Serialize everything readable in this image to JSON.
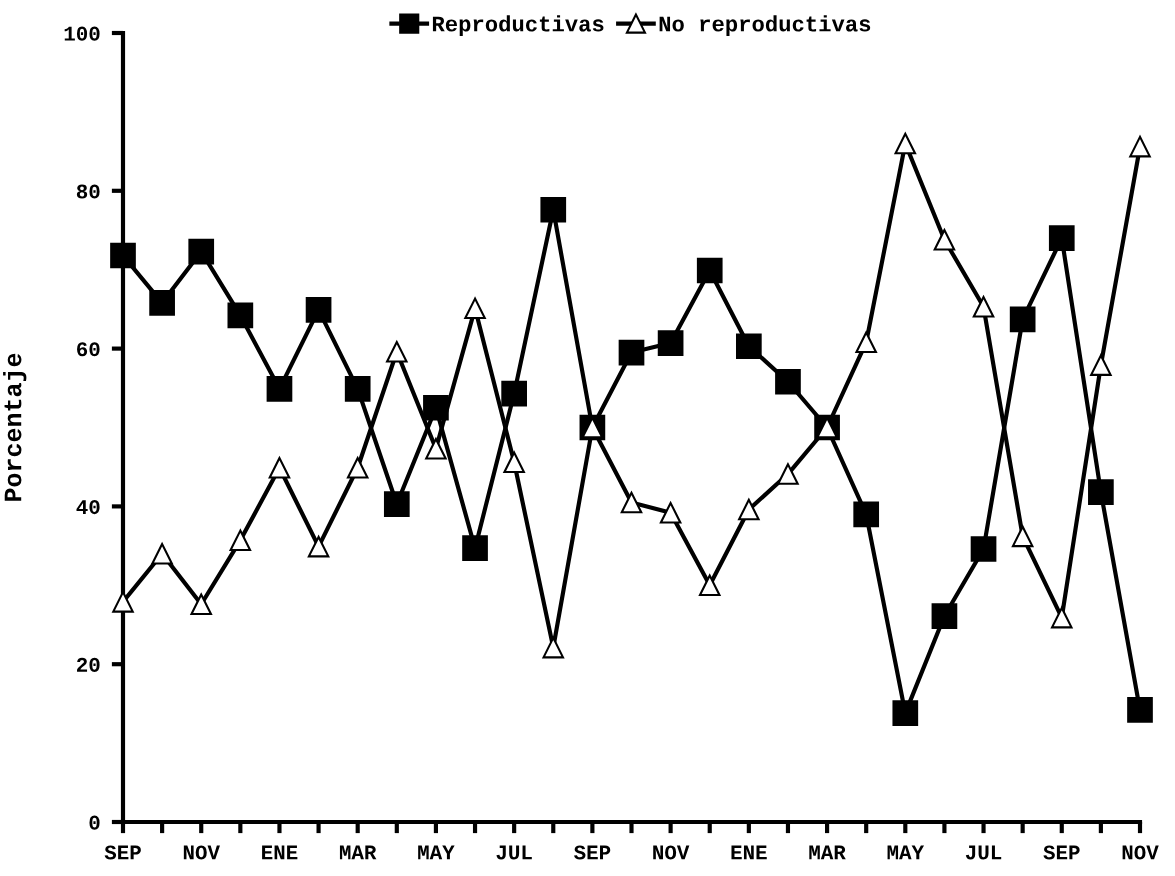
{
  "chart_data": {
    "type": "line",
    "ylabel": "Porcentaje",
    "categories": [
      "SEP",
      null,
      "NOV",
      null,
      "ENE",
      null,
      "MAR",
      null,
      "MAY",
      null,
      "JUL",
      null,
      "SEP",
      null,
      "NOV",
      null,
      "ENE",
      null,
      "MAR",
      null,
      "MAY",
      null,
      "JUL",
      null,
      "SEP",
      null,
      "NOV"
    ],
    "series": [
      {
        "name": "Reproductivas",
        "color": "#000000",
        "marker": "square",
        "values": [
          71.8,
          65.8,
          72.3,
          64.2,
          54.9,
          64.9,
          54.9,
          40.3,
          52.5,
          34.7,
          54.3,
          77.6,
          50,
          59.5,
          60.7,
          69.9,
          60.3,
          55.8,
          50,
          39.0,
          13.8,
          26.1,
          34.6,
          63.7,
          74.0,
          41.8,
          14.2
        ]
      },
      {
        "name": "No reproductivas",
        "color": "#000000",
        "marker": "triangle",
        "values": [
          27.9,
          34.0,
          27.6,
          35.7,
          44.9,
          34.9,
          44.9,
          59.6,
          47.3,
          65.1,
          45.6,
          22.1,
          50,
          40.5,
          39.2,
          30.0,
          39.6,
          44.1,
          50,
          60.8,
          86.0,
          73.8,
          65.3,
          36.2,
          25.9,
          57.9,
          85.6
        ]
      }
    ],
    "ylim": [
      0,
      100
    ],
    "yticks": [
      0,
      20,
      40,
      60,
      80,
      100
    ],
    "grid": false,
    "legend": "top",
    "line_style": "solid"
  }
}
